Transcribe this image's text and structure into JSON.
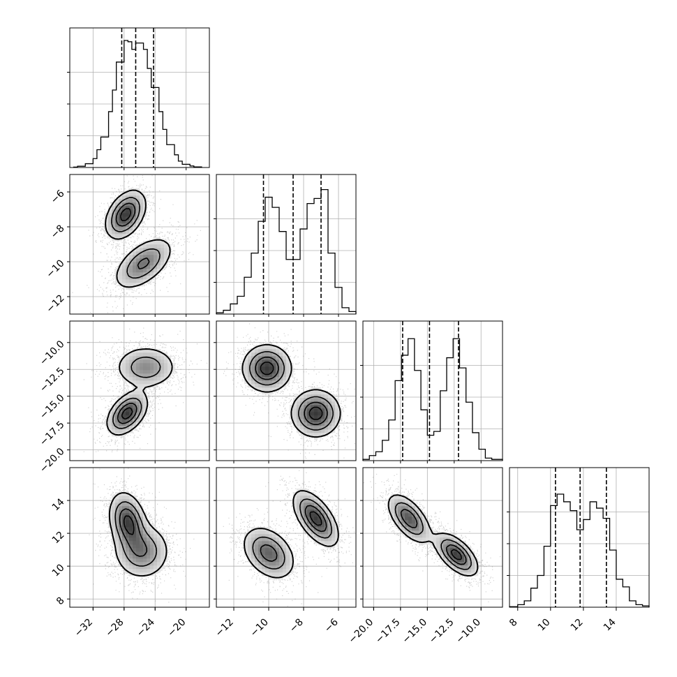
{
  "chart_data": {
    "type": "corner",
    "parameters": [
      {
        "index": 0,
        "range": [
          -35,
          -17
        ],
        "ticks": [
          -32,
          -28,
          -24,
          -20
        ],
        "tick_labels": [
          "−32",
          "−28",
          "−24",
          "−20"
        ]
      },
      {
        "index": 1,
        "range": [
          -13,
          -5
        ],
        "ticks": [
          -12,
          -10,
          -8,
          -6
        ],
        "tick_labels": [
          "−12",
          "−10",
          "−8",
          "−6"
        ]
      },
      {
        "index": 2,
        "range": [
          -21,
          -8
        ],
        "ticks": [
          -20.0,
          -17.5,
          -15.0,
          -12.5,
          -10.0
        ],
        "tick_labels": [
          "−20.0",
          "−17.5",
          "−15.0",
          "−12.5",
          "−10.0"
        ]
      },
      {
        "index": 3,
        "range": [
          7.5,
          16
        ],
        "ticks": [
          8,
          10,
          12,
          14
        ],
        "tick_labels": [
          "8",
          "10",
          "12",
          "14"
        ]
      }
    ],
    "histograms": [
      {
        "param": 0,
        "quantiles": [
          -28.3,
          -26.5,
          -24.2
        ],
        "bins": [
          [
            -34.5,
            -34.0,
            0.003
          ],
          [
            -34.0,
            -33.0,
            0.01
          ],
          [
            -33.0,
            -32.0,
            0.03
          ],
          [
            -32.0,
            -31.5,
            0.07
          ],
          [
            -31.5,
            -31.0,
            0.14
          ],
          [
            -31.0,
            -30.0,
            0.24
          ],
          [
            -30.0,
            -29.5,
            0.44
          ],
          [
            -29.5,
            -29.0,
            0.61
          ],
          [
            -29.0,
            -28.0,
            0.83
          ],
          [
            -28.0,
            -27.5,
            1.0
          ],
          [
            -27.5,
            -27.0,
            0.99
          ],
          [
            -27.0,
            -26.5,
            0.93
          ],
          [
            -26.5,
            -25.5,
            0.98
          ],
          [
            -25.5,
            -25.0,
            0.93
          ],
          [
            -25.0,
            -24.5,
            0.78
          ],
          [
            -24.5,
            -23.5,
            0.63
          ],
          [
            -23.5,
            -23.0,
            0.44
          ],
          [
            -23.0,
            -22.5,
            0.3
          ],
          [
            -22.5,
            -21.5,
            0.18
          ],
          [
            -21.5,
            -21.0,
            0.1
          ],
          [
            -21.0,
            -20.5,
            0.05
          ],
          [
            -20.5,
            -19.5,
            0.025
          ],
          [
            -19.5,
            -19.0,
            0.012
          ],
          [
            -19.0,
            -18.0,
            0.005
          ]
        ]
      },
      {
        "param": 1,
        "quantiles": [
          -10.3,
          -8.6,
          -7.0
        ],
        "bins": [
          [
            -13.0,
            -12.6,
            0.01
          ],
          [
            -12.6,
            -12.2,
            0.03
          ],
          [
            -12.2,
            -11.8,
            0.08
          ],
          [
            -11.8,
            -11.4,
            0.14
          ],
          [
            -11.4,
            -11.0,
            0.29
          ],
          [
            -11.0,
            -10.6,
            0.48
          ],
          [
            -10.6,
            -10.2,
            0.73
          ],
          [
            -10.2,
            -9.8,
            0.92
          ],
          [
            -9.8,
            -9.4,
            0.84
          ],
          [
            -9.4,
            -9.0,
            0.65
          ],
          [
            -9.0,
            -8.6,
            0.43
          ],
          [
            -8.6,
            -8.2,
            0.43
          ],
          [
            -8.2,
            -7.8,
            0.67
          ],
          [
            -7.8,
            -7.4,
            0.87
          ],
          [
            -7.4,
            -7.0,
            0.91
          ],
          [
            -7.0,
            -6.6,
            0.98
          ],
          [
            -6.6,
            -6.2,
            0.48
          ],
          [
            -6.2,
            -5.8,
            0.21
          ],
          [
            -5.8,
            -5.4,
            0.05
          ],
          [
            -5.4,
            -5.0,
            0.02
          ]
        ]
      },
      {
        "param": 2,
        "quantiles": [
          -17.3,
          -14.8,
          -12.1
        ],
        "bins": [
          [
            -21.0,
            -20.4,
            0.01
          ],
          [
            -20.4,
            -19.8,
            0.04
          ],
          [
            -19.8,
            -19.2,
            0.07
          ],
          [
            -19.2,
            -18.6,
            0.16
          ],
          [
            -18.6,
            -18.0,
            0.32
          ],
          [
            -18.0,
            -17.4,
            0.63
          ],
          [
            -17.4,
            -16.8,
            0.83
          ],
          [
            -16.8,
            -16.2,
            0.96
          ],
          [
            -16.2,
            -15.6,
            0.71
          ],
          [
            -15.6,
            -15.0,
            0.4
          ],
          [
            -15.0,
            -14.4,
            0.2
          ],
          [
            -14.4,
            -13.8,
            0.23
          ],
          [
            -13.8,
            -13.2,
            0.55
          ],
          [
            -13.2,
            -12.6,
            0.81
          ],
          [
            -12.6,
            -12.0,
            0.96
          ],
          [
            -12.0,
            -11.4,
            0.73
          ],
          [
            -11.4,
            -10.8,
            0.46
          ],
          [
            -10.8,
            -10.2,
            0.22
          ],
          [
            -10.2,
            -9.6,
            0.09
          ],
          [
            -9.6,
            -9.0,
            0.02
          ],
          [
            -9.0,
            -8.0,
            0.01
          ]
        ]
      },
      {
        "param": 3,
        "quantiles": [
          10.3,
          11.8,
          13.4
        ],
        "bins": [
          [
            7.5,
            8.0,
            0.004
          ],
          [
            8.0,
            8.4,
            0.02
          ],
          [
            8.4,
            8.8,
            0.05
          ],
          [
            8.8,
            9.2,
            0.15
          ],
          [
            9.2,
            9.6,
            0.25
          ],
          [
            9.6,
            10.0,
            0.48
          ],
          [
            10.0,
            10.4,
            0.8
          ],
          [
            10.4,
            10.8,
            0.89
          ],
          [
            10.8,
            11.2,
            0.83
          ],
          [
            11.2,
            11.6,
            0.76
          ],
          [
            11.6,
            12.0,
            0.61
          ],
          [
            12.0,
            12.4,
            0.69
          ],
          [
            12.4,
            12.8,
            0.83
          ],
          [
            12.8,
            13.2,
            0.78
          ],
          [
            13.2,
            13.6,
            0.7
          ],
          [
            13.6,
            14.0,
            0.45
          ],
          [
            14.0,
            14.4,
            0.22
          ],
          [
            14.4,
            14.8,
            0.16
          ],
          [
            14.8,
            15.2,
            0.05
          ],
          [
            15.2,
            15.6,
            0.02
          ],
          [
            15.6,
            16.0,
            0.01
          ]
        ]
      }
    ],
    "pair_plots": [
      {
        "x": 0,
        "y": 1,
        "modes": [
          {
            "weight": 0.5,
            "mean": [
              -27.8,
              -7.3
            ],
            "sd": [
              1.3,
              0.7
            ],
            "rho": 0.4
          },
          {
            "weight": 0.5,
            "mean": [
              -25.5,
              -10.1
            ],
            "sd": [
              1.9,
              0.75
            ],
            "rho": 0.55
          }
        ]
      },
      {
        "x": 0,
        "y": 2,
        "modes": [
          {
            "weight": 0.5,
            "mean": [
              -25.2,
              -12.3
            ],
            "sd": [
              2.0,
              1.0
            ],
            "rho": 0.0
          },
          {
            "weight": 0.5,
            "mean": [
              -27.6,
              -16.6
            ],
            "sd": [
              1.3,
              1.0
            ],
            "rho": 0.45
          }
        ]
      },
      {
        "x": 1,
        "y": 2,
        "modes": [
          {
            "weight": 0.5,
            "mean": [
              -10.1,
              -12.4
            ],
            "sd": [
              0.7,
              1.1
            ],
            "rho": 0.0
          },
          {
            "weight": 0.5,
            "mean": [
              -7.3,
              -16.6
            ],
            "sd": [
              0.7,
              1.1
            ],
            "rho": 0.0
          }
        ]
      },
      {
        "x": 0,
        "y": 3,
        "modes": [
          {
            "weight": 0.5,
            "mean": [
              -27.5,
              12.7
            ],
            "sd": [
              1.2,
              0.9
            ],
            "rho": -0.25
          },
          {
            "weight": 0.5,
            "mean": [
              -25.7,
              10.9
            ],
            "sd": [
              1.8,
              0.85
            ],
            "rho": 0.0
          }
        ]
      },
      {
        "x": 1,
        "y": 3,
        "modes": [
          {
            "weight": 0.5,
            "mean": [
              -10.0,
              10.8
            ],
            "sd": [
              0.75,
              0.8
            ],
            "rho": -0.35
          },
          {
            "weight": 0.5,
            "mean": [
              -7.3,
              12.9
            ],
            "sd": [
              0.65,
              0.85
            ],
            "rho": -0.6
          }
        ]
      },
      {
        "x": 2,
        "y": 3,
        "modes": [
          {
            "weight": 0.5,
            "mean": [
              -16.7,
              12.9
            ],
            "sd": [
              1.0,
              0.75
            ],
            "rho": -0.6
          },
          {
            "weight": 0.5,
            "mean": [
              -12.3,
              10.7
            ],
            "sd": [
              1.0,
              0.65
            ],
            "rho": -0.6
          }
        ]
      }
    ],
    "quantile_line_style": "dashed",
    "grid": true,
    "legend": "none"
  }
}
